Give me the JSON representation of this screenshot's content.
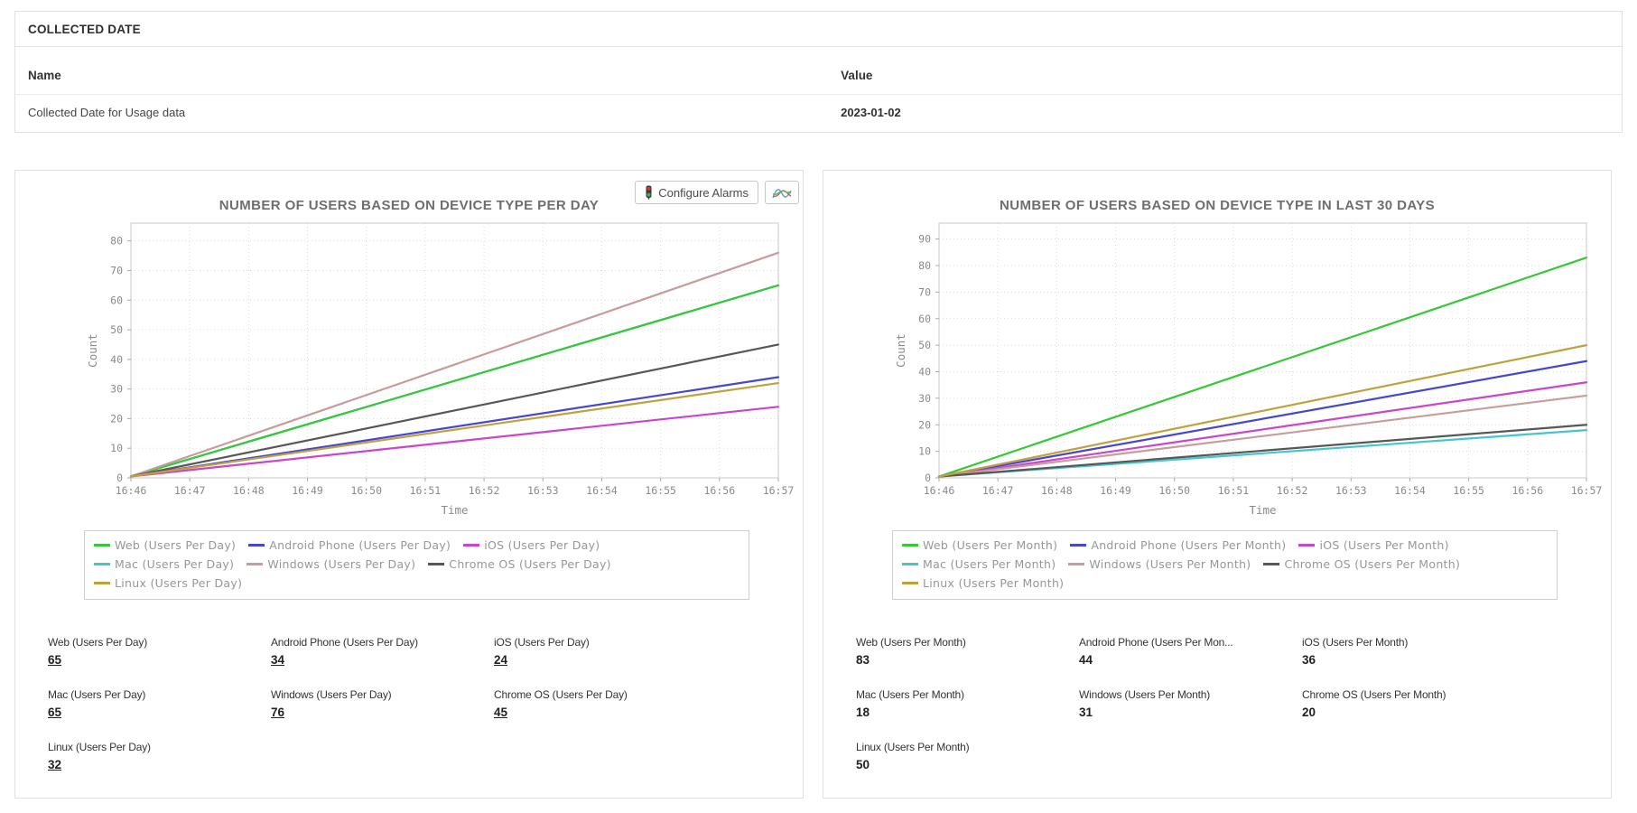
{
  "collected_date_panel": {
    "title": "COLLECTED DATE",
    "columns": {
      "name": "Name",
      "value": "Value"
    },
    "rows": [
      {
        "name": "Collected Date for Usage data",
        "value": "2023-01-02"
      }
    ]
  },
  "toolbar": {
    "configure_alarms_label": "Configure Alarms",
    "icons": [
      "traffic-light-icon",
      "line-chart-icon"
    ]
  },
  "chart_data": [
    {
      "type": "line",
      "title": "NUMBER OF USERS BASED ON DEVICE TYPE PER DAY",
      "xlabel": "Time",
      "ylabel": "Count",
      "x": [
        "16:46",
        "16:47",
        "16:48",
        "16:49",
        "16:50",
        "16:51",
        "16:52",
        "16:53",
        "16:54",
        "16:55",
        "16:56",
        "16:57"
      ],
      "y_ticks": [
        0,
        10,
        20,
        30,
        40,
        50,
        60,
        70,
        80
      ],
      "ylim": [
        0,
        86
      ],
      "grid": true,
      "legend_position": "bottom",
      "series": [
        {
          "name": "Web (Users Per Day)",
          "color": "#37c837",
          "start": 0.5,
          "end": 65,
          "z": 1
        },
        {
          "name": "Android Phone (Users Per Day)",
          "color": "#4646cf",
          "start": 0.5,
          "end": 34,
          "z": 1
        },
        {
          "name": "iOS (Users Per Day)",
          "color": "#cc44cc",
          "start": 0.5,
          "end": 24,
          "z": 1
        },
        {
          "name": "Mac (Users Per Day)",
          "color": "#45c6cd",
          "start": 0.5,
          "end": 65,
          "z": 0
        },
        {
          "name": "Windows (Users Per Day)",
          "color": "#c69c9c",
          "start": 0.5,
          "end": 76,
          "z": 1
        },
        {
          "name": "Chrome OS (Users Per Day)",
          "color": "#575757",
          "start": 0.5,
          "end": 45,
          "z": 1
        },
        {
          "name": "Linux (Users Per Day)",
          "color": "#bfa23e",
          "start": 0.5,
          "end": 32,
          "z": 1
        }
      ],
      "summary": [
        {
          "label": "Web (Users Per Day)",
          "value": "65"
        },
        {
          "label": "Android Phone (Users Per Day)",
          "value": "34"
        },
        {
          "label": "iOS (Users Per Day)",
          "value": "24"
        },
        {
          "label": "Mac (Users Per Day)",
          "value": "65"
        },
        {
          "label": "Windows (Users Per Day)",
          "value": "76"
        },
        {
          "label": "Chrome OS (Users Per Day)",
          "value": "45"
        },
        {
          "label": "Linux (Users Per Day)",
          "value": "32"
        }
      ],
      "summary_values_are_links": true,
      "has_toolbar": true
    },
    {
      "type": "line",
      "title": "NUMBER OF USERS BASED ON DEVICE TYPE IN LAST 30 DAYS",
      "xlabel": "Time",
      "ylabel": "Count",
      "x": [
        "16:46",
        "16:47",
        "16:48",
        "16:49",
        "16:50",
        "16:51",
        "16:52",
        "16:53",
        "16:54",
        "16:55",
        "16:56",
        "16:57"
      ],
      "y_ticks": [
        0,
        10,
        20,
        30,
        40,
        50,
        60,
        70,
        80,
        90
      ],
      "ylim": [
        0,
        96
      ],
      "grid": true,
      "legend_position": "bottom",
      "series": [
        {
          "name": "Web (Users Per Month)",
          "color": "#37c837",
          "start": 0.5,
          "end": 83,
          "z": 1
        },
        {
          "name": "Android Phone (Users Per Month)",
          "color": "#4646cf",
          "start": 0.5,
          "end": 44,
          "z": 1
        },
        {
          "name": "iOS (Users Per Month)",
          "color": "#cc44cc",
          "start": 0.5,
          "end": 36,
          "z": 1
        },
        {
          "name": "Mac (Users Per Month)",
          "color": "#45c6cd",
          "start": 0.5,
          "end": 18,
          "z": 0
        },
        {
          "name": "Windows (Users Per Month)",
          "color": "#c69c9c",
          "start": 0.5,
          "end": 31,
          "z": 1
        },
        {
          "name": "Chrome OS (Users Per Month)",
          "color": "#575757",
          "start": 0.5,
          "end": 20,
          "z": 1
        },
        {
          "name": "Linux (Users Per Month)",
          "color": "#bfa23e",
          "start": 0.5,
          "end": 50,
          "z": 1
        }
      ],
      "summary": [
        {
          "label": "Web (Users Per Month)",
          "value": "83"
        },
        {
          "label": "Android Phone (Users Per Mon...",
          "value": "44"
        },
        {
          "label": "iOS (Users Per Month)",
          "value": "36"
        },
        {
          "label": "Mac (Users Per Month)",
          "value": "18"
        },
        {
          "label": "Windows (Users Per Month)",
          "value": "31"
        },
        {
          "label": "Chrome OS (Users Per Month)",
          "value": "20"
        },
        {
          "label": "Linux (Users Per Month)",
          "value": "50"
        }
      ],
      "summary_values_are_links": false,
      "has_toolbar": false
    }
  ]
}
